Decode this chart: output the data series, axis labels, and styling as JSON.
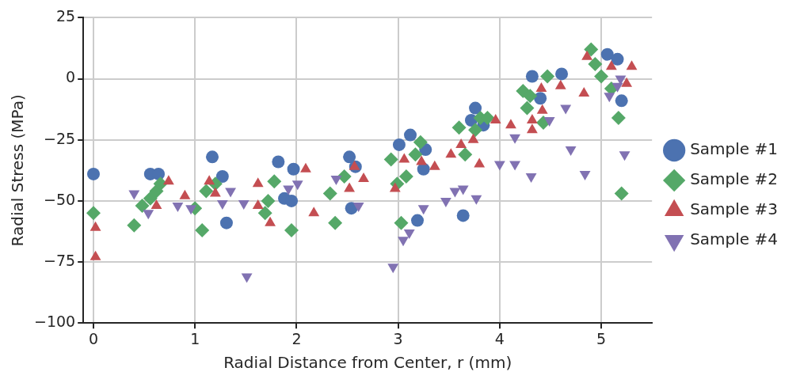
{
  "chart_data": {
    "type": "scatter",
    "xlabel": "Radial Distance from Center, r (mm)",
    "ylabel": "Radial Stress (MPa)",
    "xlim": [
      -0.1,
      5.5
    ],
    "xticks": [
      0,
      1,
      2,
      3,
      4,
      5
    ],
    "ylim": [
      -100,
      25
    ],
    "yticks": [
      -100,
      -75,
      -50,
      -25,
      0,
      25
    ],
    "grid": true,
    "legend": "right",
    "series": [
      {
        "name": "Sample #1",
        "color": "#4c72b0",
        "marker": "circle",
        "x": [
          0,
          0.56,
          0.64,
          1.17,
          1.27,
          1.31,
          1.82,
          1.88,
          1.95,
          1.97,
          2.52,
          2.58,
          2.54,
          3.01,
          3.12,
          3.27,
          3.25,
          3.19,
          3.64,
          3.76,
          3.72,
          3.84,
          4.32,
          4.4,
          4.61,
          5.06,
          5.16,
          5.2
        ],
        "values": [
          -39,
          -39,
          -39,
          -32,
          -40,
          -59,
          -34,
          -49,
          -50,
          -37,
          -32,
          -36,
          -53,
          -27,
          -23,
          -29,
          -37,
          -58,
          -56,
          -12,
          -17,
          -19,
          1,
          -8,
          2,
          10,
          8,
          -9
        ]
      },
      {
        "name": "Sample #2",
        "color": "#55a868",
        "marker": "diamond",
        "x": [
          0,
          0.4,
          0.48,
          0.56,
          0.62,
          0.66,
          1.0,
          1.07,
          1.11,
          1.2,
          1.69,
          1.78,
          1.72,
          1.95,
          2.33,
          2.38,
          2.47,
          2.93,
          2.99,
          3.03,
          3.08,
          3.17,
          3.22,
          3.6,
          3.66,
          3.76,
          3.81,
          3.88,
          4.23,
          4.3,
          4.27,
          4.47,
          4.43,
          4.9,
          4.94,
          5.0,
          5.1,
          5.17,
          5.2
        ],
        "values": [
          -55,
          -60,
          -52,
          -49,
          -46,
          -43,
          -53,
          -62,
          -46,
          -43,
          -55,
          -42,
          -50,
          -62,
          -47,
          -59,
          -40,
          -33,
          -43,
          -59,
          -40,
          -31,
          -26,
          -20,
          -31,
          -21,
          -16,
          -16,
          -5,
          -7,
          -12,
          1,
          -18,
          12,
          6,
          1,
          -4,
          -16,
          -47
        ]
      },
      {
        "name": "Sample #3",
        "color": "#c44e52",
        "marker": "triangle",
        "x": [
          0.02,
          0.02,
          0.62,
          0.74,
          0.9,
          1.2,
          1.14,
          1.62,
          1.62,
          1.74,
          2.09,
          2.17,
          2.52,
          2.66,
          2.57,
          2.97,
          3.06,
          3.23,
          3.36,
          3.52,
          3.62,
          3.74,
          3.8,
          3.96,
          4.11,
          4.32,
          4.32,
          4.41,
          4.42,
          4.6,
          4.83,
          4.86,
          5.1,
          5.25,
          5.3
        ],
        "values": [
          -61,
          -73,
          -52,
          -42,
          -48,
          -47,
          -42,
          -52,
          -43,
          -59,
          -37,
          -55,
          -45,
          -41,
          -36,
          -45,
          -33,
          -34,
          -36,
          -31,
          -27,
          -25,
          -35,
          -17,
          -19,
          -21,
          -17,
          -4,
          -13,
          -3,
          -6,
          9,
          5,
          -2,
          5
        ]
      },
      {
        "name": "Sample #4",
        "color": "#8172b2",
        "marker": "triangle_down",
        "x": [
          0.4,
          0.54,
          0.83,
          0.96,
          1.27,
          1.35,
          1.48,
          1.51,
          1.92,
          2.01,
          2.39,
          2.61,
          2.95,
          3.05,
          3.11,
          3.25,
          3.47,
          3.56,
          3.64,
          3.77,
          4.0,
          4.15,
          4.15,
          4.31,
          4.49,
          4.65,
          4.7,
          4.84,
          5.08,
          5.16,
          5.23,
          5.19
        ],
        "values": [
          -47,
          -55,
          -52,
          -53,
          -51,
          -46,
          -51,
          -81,
          -45,
          -43,
          -41,
          -52,
          -77,
          -66,
          -63,
          -53,
          -50,
          -46,
          -45,
          -49,
          -35,
          -35,
          -24,
          -40,
          -17,
          -12,
          -29,
          -39,
          -7,
          -3,
          -31,
          0
        ]
      }
    ]
  }
}
